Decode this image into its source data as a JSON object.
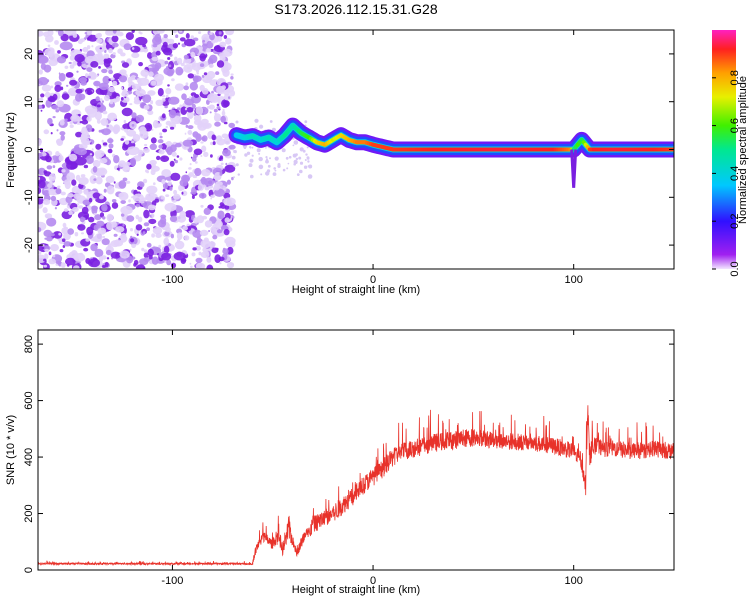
{
  "title": "S173.2026.112.15.31.G28",
  "chart_data": [
    {
      "type": "heatmap",
      "title": "S173.2026.112.15.31.G28",
      "xlabel": "Height of straight line (km)",
      "ylabel": "Frequency (Hz)",
      "xlim": [
        -167,
        150
      ],
      "ylim": [
        -25,
        25
      ],
      "x_ticks": [
        -100,
        0,
        100
      ],
      "x_tick_labels": [
        "-100",
        "0",
        "100"
      ],
      "y_ticks": [
        20,
        10,
        0,
        -10,
        -20
      ],
      "y_tick_labels": [
        "20",
        "10",
        "0",
        "-10",
        "-20"
      ],
      "noise_region_x": [
        -167,
        -70
      ],
      "ridge": {
        "x": [
          -68,
          -64,
          -60,
          -56,
          -52,
          -48,
          -44,
          -40,
          -36,
          -32,
          -28,
          -24,
          -20,
          -16,
          -12,
          -8,
          -4,
          0,
          10,
          30,
          60,
          90,
          98,
          100,
          102,
          104,
          106,
          108,
          110,
          120,
          140,
          150
        ],
        "freq": [
          3,
          2.5,
          2.8,
          2,
          2.5,
          1.5,
          3,
          5,
          3.5,
          2.5,
          1.5,
          1,
          2,
          3,
          2,
          1.5,
          1.5,
          1,
          0,
          0,
          0,
          0,
          0,
          0,
          1,
          2,
          1,
          0,
          0,
          0,
          0,
          0
        ],
        "amplitude": [
          0.35,
          0.4,
          0.45,
          0.4,
          0.45,
          0.4,
          0.5,
          0.45,
          0.55,
          0.6,
          0.75,
          0.8,
          0.7,
          0.75,
          0.8,
          0.85,
          0.85,
          0.9,
          0.9,
          0.92,
          0.93,
          0.92,
          0.85,
          0.5,
          0.6,
          0.55,
          0.7,
          0.9,
          0.92,
          0.93,
          0.92,
          0.9
        ]
      },
      "colorbar": {
        "label": "Normalized spectral amplitude",
        "range": [
          0,
          1
        ],
        "ticks": [
          0,
          0.2,
          0.4,
          0.6,
          0.8
        ],
        "tick_labels": [
          "0.0",
          "0.2",
          "0.4",
          "0.6",
          "0.8"
        ],
        "colormap": "rainbow"
      }
    },
    {
      "type": "line",
      "xlabel": "Height of straight line (km)",
      "ylabel": "SNR (10 * v/v)",
      "xlim": [
        -167,
        150
      ],
      "ylim": [
        0,
        850
      ],
      "x_ticks": [
        -100,
        0,
        100
      ],
      "x_tick_labels": [
        "-100",
        "0",
        "100"
      ],
      "y_ticks": [
        0,
        200,
        400,
        600,
        800
      ],
      "y_tick_labels": [
        "0",
        "200",
        "400",
        "600",
        "800"
      ],
      "series": [
        {
          "name": "SNR",
          "color": "#e8322a",
          "x": [
            -167,
            -150,
            -130,
            -110,
            -90,
            -70,
            -60,
            -58,
            -55,
            -50,
            -47,
            -45,
            -42,
            -40,
            -38,
            -35,
            -32,
            -30,
            -25,
            -20,
            -15,
            -12,
            -10,
            -5,
            0,
            5,
            10,
            15,
            20,
            30,
            40,
            50,
            60,
            70,
            80,
            90,
            95,
            100,
            104,
            106,
            107,
            108,
            110,
            115,
            120,
            130,
            140,
            150
          ],
          "mean": [
            22,
            22,
            22,
            22,
            22,
            22,
            22,
            80,
            120,
            90,
            130,
            60,
            150,
            100,
            60,
            110,
            130,
            160,
            180,
            200,
            230,
            250,
            260,
            300,
            330,
            360,
            400,
            420,
            430,
            450,
            460,
            470,
            460,
            455,
            450,
            440,
            430,
            420,
            380,
            300,
            600,
            400,
            440,
            430,
            430,
            420,
            430,
            420
          ],
          "spike_amp": [
            10,
            10,
            10,
            10,
            10,
            10,
            10,
            60,
            70,
            60,
            120,
            40,
            160,
            60,
            40,
            80,
            90,
            100,
            100,
            110,
            110,
            110,
            110,
            110,
            110,
            110,
            110,
            110,
            110,
            110,
            110,
            110,
            100,
            100,
            100,
            100,
            100,
            100,
            100,
            120,
            240,
            120,
            100,
            100,
            100,
            100,
            100,
            100
          ]
        }
      ]
    }
  ]
}
